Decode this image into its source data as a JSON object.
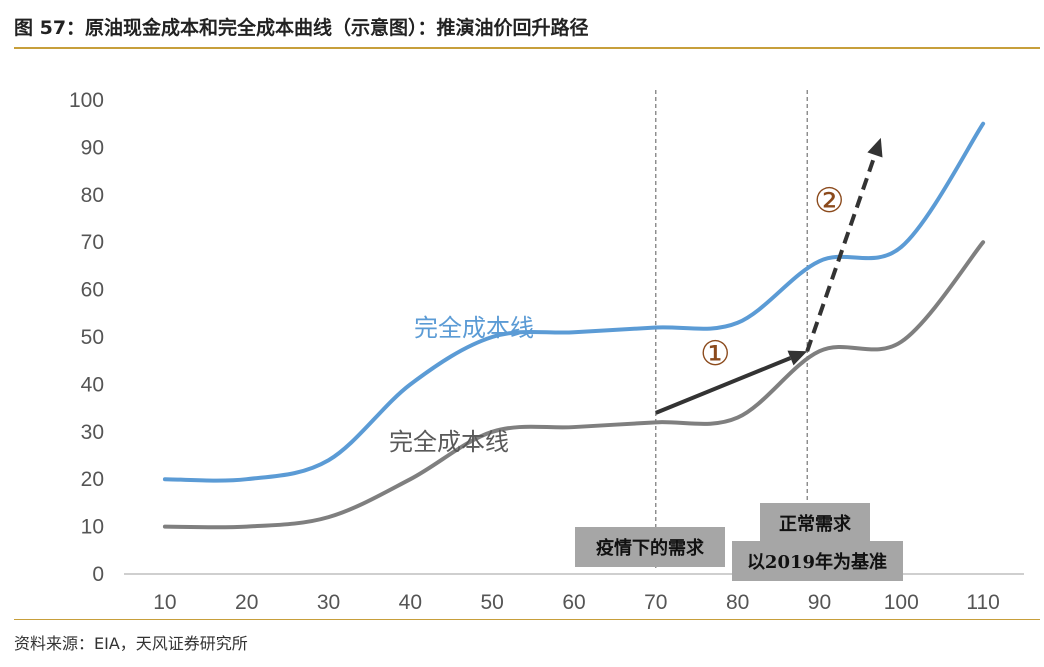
{
  "title": "图 57：原油现金成本和完全成本曲线（示意图）：推演油价回升路径",
  "source": "资料来源：EIA，天风证券研究所",
  "chart_data": {
    "type": "line",
    "x_ticks": [
      "10",
      "20",
      "30",
      "40",
      "50",
      "60",
      "70",
      "80",
      "90",
      "100",
      "110"
    ],
    "y_ticks": [
      "0",
      "10",
      "20",
      "30",
      "40",
      "50",
      "60",
      "70",
      "80",
      "90",
      "100"
    ],
    "xlim": [
      5,
      115
    ],
    "ylim": [
      0,
      100
    ],
    "grid": false,
    "series": [
      {
        "name": "完全成本线",
        "color": "#5b9bd5",
        "x": [
          10,
          20,
          30,
          40,
          50,
          60,
          70,
          80,
          90,
          100,
          110
        ],
        "y": [
          20,
          20,
          24,
          40,
          50,
          51,
          52,
          53,
          66,
          69,
          95
        ]
      },
      {
        "name": "完全成本线",
        "color": "#7f7f7f",
        "x": [
          10,
          20,
          30,
          40,
          50,
          60,
          70,
          80,
          90,
          100,
          110
        ],
        "y": [
          10,
          10,
          12,
          20,
          30,
          31,
          32,
          33,
          47,
          49,
          70
        ]
      }
    ],
    "vlines": [
      70,
      88.5
    ],
    "annotations": {
      "box1": "疫情下的需求",
      "box2_line1": "正常需求",
      "box2_line2": "以2019年为基准",
      "circle1": "①",
      "circle2": "②"
    },
    "arrows": [
      {
        "from": [
          70,
          34
        ],
        "to": [
          88.5,
          47
        ],
        "style": "solid"
      },
      {
        "from": [
          88.5,
          47
        ],
        "to": [
          97.5,
          92
        ],
        "style": "dashed"
      }
    ]
  }
}
